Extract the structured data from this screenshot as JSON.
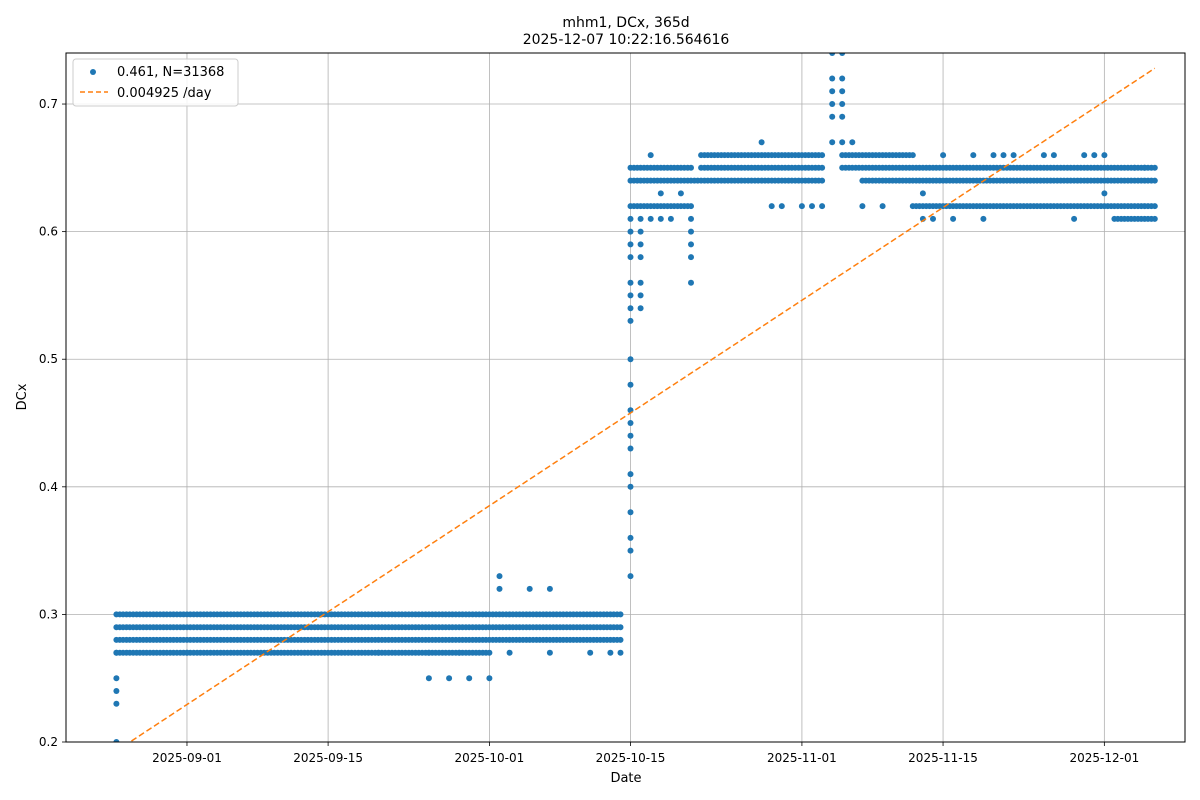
{
  "chart_data": {
    "type": "scatter",
    "title": "mhm1, DCx, 365d",
    "subtitle": "2025-12-07 10:22:16.564616",
    "xlabel": "Date",
    "ylabel": "DCx",
    "xlim": [
      "2025-08-20",
      "2025-12-09"
    ],
    "ylim": [
      0.2,
      0.74
    ],
    "x_ticks": [
      "2025-09-01",
      "2025-09-15",
      "2025-10-01",
      "2025-10-15",
      "2025-11-01",
      "2025-11-15",
      "2025-12-01"
    ],
    "y_ticks": [
      "0.2",
      "0.3",
      "0.4",
      "0.5",
      "0.6",
      "0.7"
    ],
    "grid": true,
    "legend_position": "top-left",
    "legend": [
      {
        "label": "0.461, N=31368",
        "style": "point",
        "color": "#1f77b4"
      },
      {
        "label": "0.004925 /day",
        "style": "dashed-line",
        "color": "#ff7f0e"
      }
    ],
    "series": [
      {
        "name": "0.461, N=31368",
        "kind": "scatter",
        "color": "#1f77b4",
        "bands": [
          {
            "from": "2025-08-25",
            "to": "2025-10-14",
            "y": 0.28
          },
          {
            "from": "2025-08-25",
            "to": "2025-10-14",
            "y": 0.29
          },
          {
            "from": "2025-08-25",
            "to": "2025-10-14",
            "y": 0.3
          },
          {
            "from": "2025-08-25",
            "to": "2025-10-01",
            "y": 0.27
          },
          {
            "from": "2025-10-15",
            "to": "2025-11-03",
            "y": 0.64
          },
          {
            "from": "2025-10-15",
            "to": "2025-10-21",
            "y": 0.65
          },
          {
            "from": "2025-10-15",
            "to": "2025-10-21",
            "y": 0.62
          },
          {
            "from": "2025-10-22",
            "to": "2025-11-03",
            "y": 0.65
          },
          {
            "from": "2025-10-22",
            "to": "2025-11-03",
            "y": 0.66
          },
          {
            "from": "2025-11-05",
            "to": "2025-12-06",
            "y": 0.65
          },
          {
            "from": "2025-11-07",
            "to": "2025-12-06",
            "y": 0.64
          },
          {
            "from": "2025-11-12",
            "to": "2025-12-06",
            "y": 0.62
          },
          {
            "from": "2025-11-05",
            "to": "2025-11-12",
            "y": 0.66
          },
          {
            "from": "2025-12-02",
            "to": "2025-12-06",
            "y": 0.61
          }
        ],
        "points": [
          {
            "x": "2025-08-25",
            "y": 0.2
          },
          {
            "x": "2025-08-25",
            "y": 0.23
          },
          {
            "x": "2025-08-25",
            "y": 0.24
          },
          {
            "x": "2025-08-25",
            "y": 0.25
          },
          {
            "x": "2025-08-25",
            "y": 0.27
          },
          {
            "x": "2025-09-01",
            "y": 0.27
          },
          {
            "x": "2025-09-20",
            "y": 0.27
          },
          {
            "x": "2025-09-25",
            "y": 0.25
          },
          {
            "x": "2025-09-27",
            "y": 0.25
          },
          {
            "x": "2025-09-29",
            "y": 0.25
          },
          {
            "x": "2025-10-01",
            "y": 0.25
          },
          {
            "x": "2025-09-25",
            "y": 0.27
          },
          {
            "x": "2025-09-28",
            "y": 0.27
          },
          {
            "x": "2025-10-03",
            "y": 0.27
          },
          {
            "x": "2025-10-07",
            "y": 0.27
          },
          {
            "x": "2025-10-11",
            "y": 0.27
          },
          {
            "x": "2025-10-13",
            "y": 0.27
          },
          {
            "x": "2025-10-14",
            "y": 0.27
          },
          {
            "x": "2025-10-02",
            "y": 0.32
          },
          {
            "x": "2025-10-02",
            "y": 0.33
          },
          {
            "x": "2025-10-05",
            "y": 0.32
          },
          {
            "x": "2025-10-07",
            "y": 0.32
          },
          {
            "x": "2025-10-15",
            "y": 0.33
          },
          {
            "x": "2025-10-15",
            "y": 0.35
          },
          {
            "x": "2025-10-15",
            "y": 0.36
          },
          {
            "x": "2025-10-15",
            "y": 0.38
          },
          {
            "x": "2025-10-15",
            "y": 0.4
          },
          {
            "x": "2025-10-15",
            "y": 0.41
          },
          {
            "x": "2025-10-15",
            "y": 0.43
          },
          {
            "x": "2025-10-15",
            "y": 0.44
          },
          {
            "x": "2025-10-15",
            "y": 0.45
          },
          {
            "x": "2025-10-15",
            "y": 0.46
          },
          {
            "x": "2025-10-15",
            "y": 0.48
          },
          {
            "x": "2025-10-15",
            "y": 0.5
          },
          {
            "x": "2025-10-15",
            "y": 0.53
          },
          {
            "x": "2025-10-15",
            "y": 0.54
          },
          {
            "x": "2025-10-15",
            "y": 0.55
          },
          {
            "x": "2025-10-15",
            "y": 0.56
          },
          {
            "x": "2025-10-15",
            "y": 0.58
          },
          {
            "x": "2025-10-15",
            "y": 0.59
          },
          {
            "x": "2025-10-15",
            "y": 0.6
          },
          {
            "x": "2025-10-15",
            "y": 0.61
          },
          {
            "x": "2025-10-16",
            "y": 0.54
          },
          {
            "x": "2025-10-16",
            "y": 0.55
          },
          {
            "x": "2025-10-16",
            "y": 0.56
          },
          {
            "x": "2025-10-16",
            "y": 0.58
          },
          {
            "x": "2025-10-16",
            "y": 0.59
          },
          {
            "x": "2025-10-16",
            "y": 0.6
          },
          {
            "x": "2025-10-16",
            "y": 0.61
          },
          {
            "x": "2025-10-17",
            "y": 0.66
          },
          {
            "x": "2025-10-17",
            "y": 0.61
          },
          {
            "x": "2025-10-18",
            "y": 0.61
          },
          {
            "x": "2025-10-18",
            "y": 0.63
          },
          {
            "x": "2025-10-19",
            "y": 0.61
          },
          {
            "x": "2025-10-20",
            "y": 0.63
          },
          {
            "x": "2025-10-21",
            "y": 0.56
          },
          {
            "x": "2025-10-21",
            "y": 0.58
          },
          {
            "x": "2025-10-21",
            "y": 0.59
          },
          {
            "x": "2025-10-21",
            "y": 0.6
          },
          {
            "x": "2025-10-21",
            "y": 0.61
          },
          {
            "x": "2025-10-28",
            "y": 0.67
          },
          {
            "x": "2025-10-29",
            "y": 0.62
          },
          {
            "x": "2025-10-30",
            "y": 0.62
          },
          {
            "x": "2025-11-01",
            "y": 0.62
          },
          {
            "x": "2025-11-02",
            "y": 0.62
          },
          {
            "x": "2025-11-03",
            "y": 0.62
          },
          {
            "x": "2025-11-04",
            "y": 0.67
          },
          {
            "x": "2025-11-04",
            "y": 0.69
          },
          {
            "x": "2025-11-04",
            "y": 0.7
          },
          {
            "x": "2025-11-04",
            "y": 0.71
          },
          {
            "x": "2025-11-04",
            "y": 0.72
          },
          {
            "x": "2025-11-04",
            "y": 0.74
          },
          {
            "x": "2025-11-05",
            "y": 0.67
          },
          {
            "x": "2025-11-05",
            "y": 0.69
          },
          {
            "x": "2025-11-05",
            "y": 0.7
          },
          {
            "x": "2025-11-05",
            "y": 0.71
          },
          {
            "x": "2025-11-05",
            "y": 0.72
          },
          {
            "x": "2025-11-05",
            "y": 0.74
          },
          {
            "x": "2025-11-06",
            "y": 0.67
          },
          {
            "x": "2025-11-07",
            "y": 0.62
          },
          {
            "x": "2025-11-09",
            "y": 0.62
          },
          {
            "x": "2025-11-13",
            "y": 0.61
          },
          {
            "x": "2025-11-13",
            "y": 0.63
          },
          {
            "x": "2025-11-14",
            "y": 0.61
          },
          {
            "x": "2025-11-15",
            "y": 0.66
          },
          {
            "x": "2025-11-16",
            "y": 0.61
          },
          {
            "x": "2025-11-18",
            "y": 0.66
          },
          {
            "x": "2025-11-19",
            "y": 0.61
          },
          {
            "x": "2025-11-20",
            "y": 0.66
          },
          {
            "x": "2025-11-21",
            "y": 0.66
          },
          {
            "x": "2025-11-22",
            "y": 0.66
          },
          {
            "x": "2025-11-25",
            "y": 0.66
          },
          {
            "x": "2025-11-26",
            "y": 0.66
          },
          {
            "x": "2025-11-28",
            "y": 0.61
          },
          {
            "x": "2025-11-29",
            "y": 0.66
          },
          {
            "x": "2025-11-30",
            "y": 0.66
          },
          {
            "x": "2025-12-01",
            "y": 0.63
          },
          {
            "x": "2025-12-01",
            "y": 0.66
          },
          {
            "x": "2025-12-04",
            "y": 0.65
          },
          {
            "x": "2025-12-05",
            "y": 0.65
          }
        ]
      },
      {
        "name": "0.004925 /day",
        "kind": "line",
        "style": "dashed",
        "color": "#ff7f0e",
        "x": [
          "2025-08-25",
          "2025-12-06"
        ],
        "y": [
          0.193,
          0.728
        ]
      }
    ]
  }
}
